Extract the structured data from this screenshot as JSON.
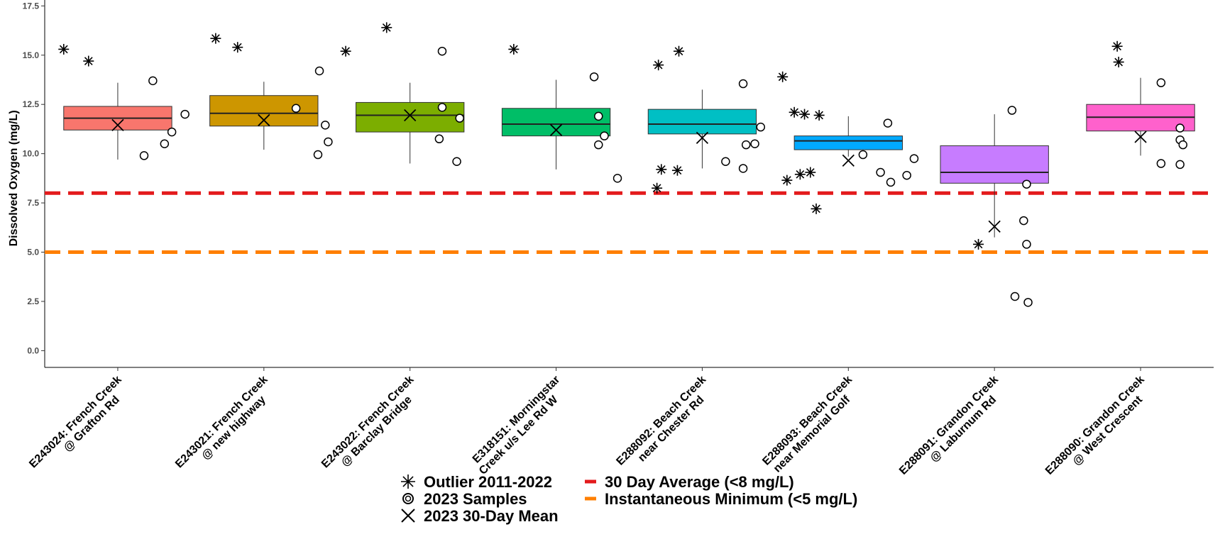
{
  "chart_data": {
    "type": "boxplot",
    "ylabel": "Dissolved Oxygen (mg/L)",
    "xlabel": "",
    "ylim": [
      -0.85,
      17.8
    ],
    "yticks": [
      0.0,
      2.5,
      5.0,
      7.5,
      10.0,
      12.5,
      15.0,
      17.5
    ],
    "ytick_labels": [
      "0.0",
      "2.5",
      "5.0",
      "7.5",
      "10.0",
      "12.5",
      "15.0",
      "17.5"
    ],
    "grid": false,
    "legend_position": "bottom",
    "reference_lines": [
      {
        "name": "30 Day Average (<8 mg/L)",
        "y": 8.0,
        "color": "#e31a1c",
        "style": "dashed"
      },
      {
        "name": "Instantaneous Minimum (<5 mg/L)",
        "y": 5.0,
        "color": "#ff7f00",
        "style": "dashed"
      }
    ],
    "legend": [
      {
        "marker": "asterisk",
        "label": "Outlier 2011-2022"
      },
      {
        "marker": "circle",
        "label": "2023 Samples"
      },
      {
        "marker": "x",
        "label": "2023 30-Day Mean"
      }
    ],
    "sites": [
      {
        "label_line1": "E243024: French Creek",
        "label_line2": "@ Grafton Rd",
        "color": "#f8766d",
        "q1": 11.2,
        "median": 11.8,
        "q3": 12.4,
        "whisker_low": 9.7,
        "whisker_high": 13.6,
        "mean_2023": 11.45,
        "outliers": [
          {
            "dx": -0.37,
            "y": 15.3
          },
          {
            "dx": -0.2,
            "y": 14.7
          }
        ],
        "samples": [
          {
            "dx": 0.24,
            "y": 13.7
          },
          {
            "dx": 0.46,
            "y": 12.0
          },
          {
            "dx": 0.37,
            "y": 11.1
          },
          {
            "dx": 0.32,
            "y": 10.5
          },
          {
            "dx": 0.18,
            "y": 9.9
          }
        ]
      },
      {
        "label_line1": "E243021: French Creek",
        "label_line2": "@ new highway",
        "color": "#cd9600",
        "q1": 11.4,
        "median": 12.05,
        "q3": 12.95,
        "whisker_low": 10.2,
        "whisker_high": 13.65,
        "mean_2023": 11.7,
        "outliers": [
          {
            "dx": -0.33,
            "y": 15.85
          },
          {
            "dx": -0.18,
            "y": 15.4
          }
        ],
        "samples": [
          {
            "dx": 0.22,
            "y": 12.3
          },
          {
            "dx": 0.38,
            "y": 14.2
          },
          {
            "dx": 0.42,
            "y": 11.45
          },
          {
            "dx": 0.44,
            "y": 10.6
          },
          {
            "dx": 0.37,
            "y": 9.95
          }
        ]
      },
      {
        "label_line1": "E243022: French Creek",
        "label_line2": "@ Barclay Bridge",
        "color": "#7cae00",
        "q1": 11.1,
        "median": 11.95,
        "q3": 12.6,
        "whisker_low": 9.5,
        "whisker_high": 13.6,
        "mean_2023": 11.95,
        "outliers": [
          {
            "dx": -0.44,
            "y": 15.2
          },
          {
            "dx": -0.16,
            "y": 16.4
          }
        ],
        "samples": [
          {
            "dx": 0.22,
            "y": 12.35
          },
          {
            "dx": 0.2,
            "y": 10.75
          },
          {
            "dx": 0.22,
            "y": 15.2
          },
          {
            "dx": 0.34,
            "y": 11.8
          },
          {
            "dx": 0.32,
            "y": 9.6
          }
        ]
      },
      {
        "label_line1": "E318151: Morningstar",
        "label_line2": "Creek u/s Lee Rd W",
        "color": "#00be67",
        "q1": 10.9,
        "median": 11.5,
        "q3": 12.3,
        "whisker_low": 9.2,
        "whisker_high": 13.75,
        "mean_2023": 11.2,
        "outliers": [
          {
            "dx": -0.29,
            "y": 15.3
          }
        ],
        "samples": [
          {
            "dx": 0.26,
            "y": 13.9
          },
          {
            "dx": 0.29,
            "y": 11.9
          },
          {
            "dx": 0.33,
            "y": 10.9
          },
          {
            "dx": 0.29,
            "y": 10.45
          },
          {
            "dx": 0.42,
            "y": 8.75
          }
        ]
      },
      {
        "label_line1": "E288092: Beach Creek",
        "label_line2": "near Chester Rd",
        "color": "#00bfc4",
        "q1": 11.0,
        "median": 11.5,
        "q3": 12.25,
        "whisker_low": 9.25,
        "whisker_high": 13.25,
        "mean_2023": 10.8,
        "outliers": [
          {
            "dx": -0.3,
            "y": 14.5
          },
          {
            "dx": -0.16,
            "y": 15.2
          },
          {
            "dx": -0.28,
            "y": 9.2
          },
          {
            "dx": -0.17,
            "y": 9.15
          },
          {
            "dx": -0.31,
            "y": 8.25
          }
        ],
        "samples": [
          {
            "dx": 0.28,
            "y": 13.55
          },
          {
            "dx": 0.4,
            "y": 11.35
          },
          {
            "dx": 0.3,
            "y": 10.45
          },
          {
            "dx": 0.36,
            "y": 10.5
          },
          {
            "dx": 0.16,
            "y": 9.6
          },
          {
            "dx": 0.28,
            "y": 9.25
          }
        ]
      },
      {
        "label_line1": "E288093: Beach Creek",
        "label_line2": "near Memorial Golf",
        "color": "#00a9ff",
        "q1": 10.2,
        "median": 10.65,
        "q3": 10.9,
        "whisker_low": 9.85,
        "whisker_high": 11.9,
        "mean_2023": 9.65,
        "outliers": [
          {
            "dx": -0.37,
            "y": 12.1
          },
          {
            "dx": -0.3,
            "y": 12.0
          },
          {
            "dx": -0.45,
            "y": 13.9
          },
          {
            "dx": -0.2,
            "y": 11.95
          },
          {
            "dx": -0.26,
            "y": 9.05
          },
          {
            "dx": -0.33,
            "y": 8.95
          },
          {
            "dx": -0.42,
            "y": 8.65
          },
          {
            "dx": -0.22,
            "y": 7.2
          }
        ],
        "samples": [
          {
            "dx": 0.27,
            "y": 11.55
          },
          {
            "dx": 0.1,
            "y": 9.95
          },
          {
            "dx": 0.22,
            "y": 9.05
          },
          {
            "dx": 0.29,
            "y": 8.55
          },
          {
            "dx": 0.4,
            "y": 8.9
          },
          {
            "dx": 0.45,
            "y": 9.75
          }
        ]
      },
      {
        "label_line1": "E288091: Grandon Creek",
        "label_line2": "@ Laburnum Rd",
        "color": "#c77cff",
        "q1": 8.5,
        "median": 9.05,
        "q3": 10.4,
        "whisker_low": 5.75,
        "whisker_high": 12.0,
        "mean_2023": 6.3,
        "outliers": [
          {
            "dx": -0.11,
            "y": 5.4
          }
        ],
        "samples": [
          {
            "dx": 0.12,
            "y": 12.2
          },
          {
            "dx": 0.22,
            "y": 8.45
          },
          {
            "dx": 0.2,
            "y": 6.6
          },
          {
            "dx": 0.22,
            "y": 5.4
          },
          {
            "dx": 0.14,
            "y": 2.75
          },
          {
            "dx": 0.23,
            "y": 2.45
          }
        ]
      },
      {
        "label_line1": "E288090: Grandon Creek",
        "label_line2": "@ West Crescent",
        "color": "#ff61cc",
        "q1": 11.15,
        "median": 11.85,
        "q3": 12.5,
        "whisker_low": 9.9,
        "whisker_high": 13.85,
        "mean_2023": 10.85,
        "outliers": [
          {
            "dx": -0.16,
            "y": 15.45
          },
          {
            "dx": -0.15,
            "y": 14.65
          }
        ],
        "samples": [
          {
            "dx": 0.14,
            "y": 13.6
          },
          {
            "dx": 0.27,
            "y": 11.3
          },
          {
            "dx": 0.27,
            "y": 10.7
          },
          {
            "dx": 0.29,
            "y": 10.45
          },
          {
            "dx": 0.14,
            "y": 9.5
          },
          {
            "dx": 0.27,
            "y": 9.45
          }
        ]
      }
    ]
  }
}
